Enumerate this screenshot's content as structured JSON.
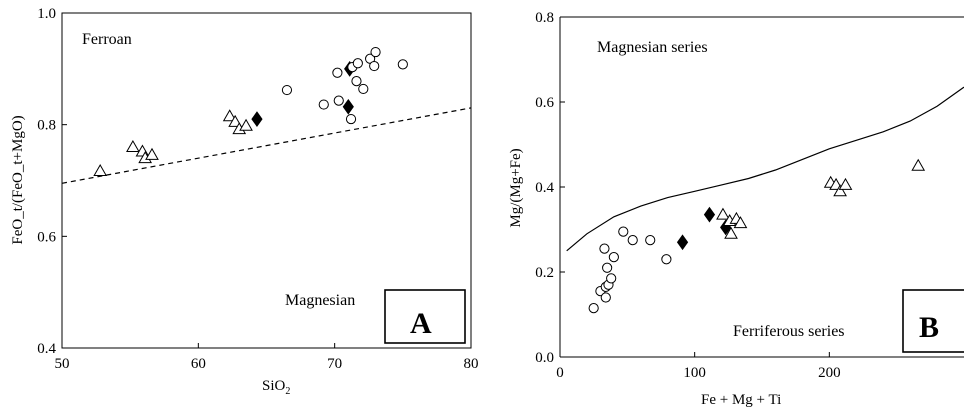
{
  "chart_data": [
    {
      "type": "scatter",
      "panel_label": "A",
      "xlabel": "SiO",
      "xlabel_sub": "2",
      "ylabel": "FeO_t/(FeO_t+MgO)",
      "xlim": [
        50,
        80
      ],
      "ylim": [
        0.4,
        1.0
      ],
      "xticks": [
        50,
        60,
        70,
        80
      ],
      "yticks": [
        0.4,
        0.6,
        0.8,
        1.0
      ],
      "xtick_labels": [
        "50",
        "60",
        "70",
        "80"
      ],
      "ytick_labels": [
        "0.4",
        "0.6",
        "0.8",
        "1.0"
      ],
      "annotations": [
        "Ferroan",
        "Magnesian"
      ],
      "boundary": {
        "style": "dashed",
        "points": [
          [
            50,
            0.695
          ],
          [
            80,
            0.83
          ]
        ]
      },
      "series": [
        {
          "marker": "triangle",
          "points": [
            [
              52.8,
              0.717
            ],
            [
              55.2,
              0.76
            ],
            [
              55.9,
              0.752
            ],
            [
              56.1,
              0.74
            ],
            [
              56.6,
              0.746
            ],
            [
              62.3,
              0.815
            ],
            [
              62.7,
              0.805
            ],
            [
              63.0,
              0.792
            ],
            [
              63.5,
              0.798
            ]
          ]
        },
        {
          "marker": "diamond",
          "points": [
            [
              64.3,
              0.81
            ],
            [
              71.1,
              0.9
            ],
            [
              71.0,
              0.832
            ]
          ]
        },
        {
          "marker": "circle",
          "points": [
            [
              66.5,
              0.862
            ],
            [
              69.2,
              0.836
            ],
            [
              70.2,
              0.893
            ],
            [
              70.3,
              0.843
            ],
            [
              71.2,
              0.81
            ],
            [
              71.3,
              0.903
            ],
            [
              71.6,
              0.878
            ],
            [
              71.7,
              0.91
            ],
            [
              72.1,
              0.864
            ],
            [
              72.6,
              0.918
            ],
            [
              72.9,
              0.905
            ],
            [
              73.0,
              0.93
            ],
            [
              75.0,
              0.908
            ]
          ]
        }
      ]
    },
    {
      "type": "scatter",
      "panel_label": "B",
      "xlabel": "Fe + Mg + Ti",
      "ylabel": "Mg/(Mg+Fe)",
      "xlim": [
        0,
        300
      ],
      "ylim": [
        0.0,
        0.8
      ],
      "xticks": [
        0,
        100,
        200
      ],
      "yticks": [
        0.0,
        0.2,
        0.4,
        0.6,
        0.8
      ],
      "xtick_labels": [
        "0",
        "100",
        "200"
      ],
      "ytick_labels": [
        "0.0",
        "0.2",
        "0.4",
        "0.6",
        "0.8"
      ],
      "annotations": [
        "Magnesian series",
        "Ferriferous series"
      ],
      "boundary": {
        "style": "solid",
        "points": [
          [
            5,
            0.25
          ],
          [
            20,
            0.29
          ],
          [
            40,
            0.33
          ],
          [
            60,
            0.355
          ],
          [
            80,
            0.375
          ],
          [
            100,
            0.39
          ],
          [
            120,
            0.405
          ],
          [
            140,
            0.42
          ],
          [
            160,
            0.44
          ],
          [
            180,
            0.465
          ],
          [
            200,
            0.49
          ],
          [
            220,
            0.51
          ],
          [
            240,
            0.53
          ],
          [
            260,
            0.555
          ],
          [
            280,
            0.59
          ],
          [
            300,
            0.635
          ]
        ]
      },
      "series": [
        {
          "marker": "circle",
          "points": [
            [
              25,
              0.115
            ],
            [
              30,
              0.155
            ],
            [
              33,
              0.255
            ],
            [
              34,
              0.14
            ],
            [
              34,
              0.165
            ],
            [
              35,
              0.21
            ],
            [
              36,
              0.17
            ],
            [
              38,
              0.185
            ],
            [
              40,
              0.235
            ],
            [
              47,
              0.295
            ],
            [
              54,
              0.275
            ],
            [
              67,
              0.275
            ],
            [
              79,
              0.23
            ]
          ]
        },
        {
          "marker": "diamond",
          "points": [
            [
              91,
              0.27
            ],
            [
              111,
              0.335
            ],
            [
              123,
              0.305
            ]
          ]
        },
        {
          "marker": "triangle",
          "points": [
            [
              121,
              0.335
            ],
            [
              126,
              0.32
            ],
            [
              127,
              0.29
            ],
            [
              131,
              0.325
            ],
            [
              134,
              0.315
            ],
            [
              201,
              0.41
            ],
            [
              205,
              0.405
            ],
            [
              208,
              0.39
            ],
            [
              212,
              0.405
            ],
            [
              266,
              0.45
            ]
          ]
        }
      ]
    }
  ]
}
